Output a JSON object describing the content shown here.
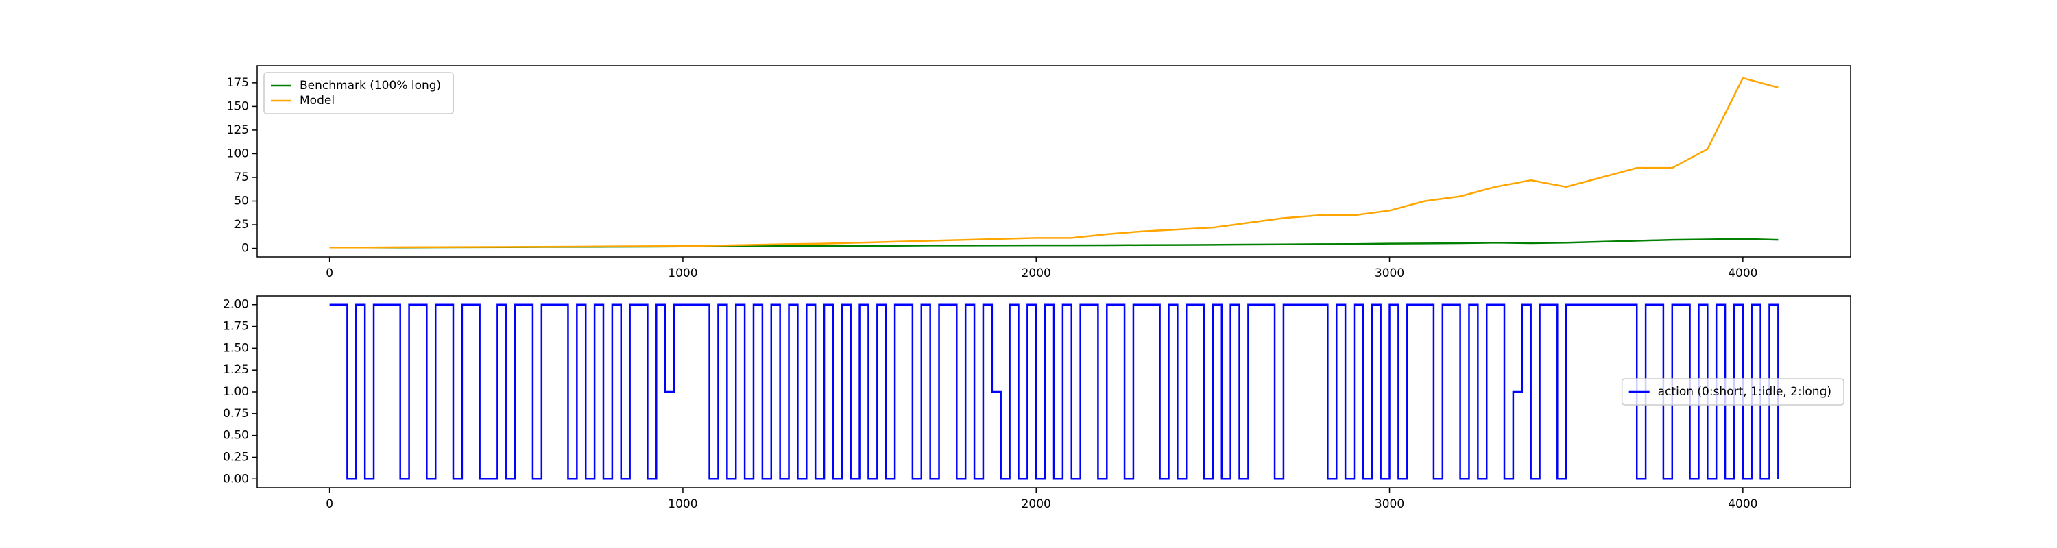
{
  "chart_data": [
    {
      "type": "line",
      "x": [
        0,
        100,
        200,
        300,
        400,
        500,
        600,
        700,
        800,
        900,
        1000,
        1100,
        1200,
        1300,
        1400,
        1500,
        1600,
        1700,
        1800,
        1900,
        2000,
        2100,
        2200,
        2300,
        2400,
        2500,
        2600,
        2700,
        2800,
        2900,
        3000,
        3100,
        3200,
        3300,
        3400,
        3500,
        3600,
        3700,
        3800,
        3900,
        4000,
        4100
      ],
      "series": [
        {
          "name": "Benchmark (100% long)",
          "color": "#008000",
          "values": [
            1,
            1,
            1,
            1.1,
            1.2,
            1.3,
            1.5,
            1.6,
            1.8,
            1.9,
            2,
            2.2,
            2.4,
            2.5,
            2.5,
            2.7,
            2.8,
            3,
            3,
            3.1,
            3.2,
            3.2,
            3.3,
            3.5,
            3.6,
            3.8,
            4,
            4.2,
            4.5,
            4.6,
            5,
            5.2,
            5.5,
            6,
            5.5,
            6,
            7,
            8,
            9,
            9.5,
            10,
            9
          ]
        },
        {
          "name": "Model",
          "color": "#ffa500",
          "values": [
            1,
            1,
            1.2,
            1.3,
            1.4,
            1.5,
            1.7,
            1.9,
            2.1,
            2.3,
            2.5,
            3,
            3.8,
            4.5,
            5,
            6,
            7,
            8,
            9,
            10,
            11,
            11,
            15,
            18,
            20,
            22,
            27,
            32,
            35,
            35,
            40,
            50,
            55,
            65,
            72,
            65,
            75,
            85,
            85,
            105,
            180,
            170
          ]
        }
      ],
      "xlim": [
        -205,
        4305
      ],
      "xticks": [
        0,
        1000,
        2000,
        3000,
        4000
      ],
      "ylim": [
        -9,
        193
      ],
      "yticks": [
        0,
        25,
        50,
        75,
        100,
        125,
        150,
        175
      ],
      "legend": "upper left"
    },
    {
      "type": "line",
      "step": "post",
      "x": [
        0,
        25,
        50,
        75,
        100,
        125,
        150,
        175,
        200,
        225,
        250,
        275,
        300,
        325,
        350,
        375,
        400,
        425,
        450,
        475,
        500,
        525,
        550,
        575,
        600,
        625,
        650,
        675,
        700,
        725,
        750,
        775,
        800,
        825,
        850,
        875,
        900,
        925,
        950,
        975,
        1000,
        1025,
        1050,
        1075,
        1100,
        1125,
        1150,
        1175,
        1200,
        1225,
        1250,
        1275,
        1300,
        1325,
        1350,
        1375,
        1400,
        1425,
        1450,
        1475,
        1500,
        1525,
        1550,
        1575,
        1600,
        1625,
        1650,
        1675,
        1700,
        1725,
        1750,
        1775,
        1800,
        1825,
        1850,
        1875,
        1900,
        1925,
        1950,
        1975,
        2000,
        2025,
        2050,
        2075,
        2100,
        2125,
        2150,
        2175,
        2200,
        2225,
        2250,
        2275,
        2300,
        2325,
        2350,
        2375,
        2400,
        2425,
        2450,
        2475,
        2500,
        2525,
        2550,
        2575,
        2600,
        2625,
        2650,
        2675,
        2700,
        2725,
        2750,
        2775,
        2800,
        2825,
        2850,
        2875,
        2900,
        2925,
        2950,
        2975,
        3000,
        3025,
        3050,
        3075,
        3100,
        3125,
        3150,
        3175,
        3200,
        3225,
        3250,
        3275,
        3300,
        3325,
        3350,
        3375,
        3400,
        3425,
        3450,
        3475,
        3500,
        3525,
        3550,
        3575,
        3600,
        3625,
        3650,
        3675,
        3700,
        3725,
        3750,
        3775,
        3800,
        3825,
        3850,
        3875,
        3900,
        3925,
        3950,
        3975,
        4000,
        4025,
        4050,
        4075,
        4100
      ],
      "series": [
        {
          "name": "action (0:short, 1:idle, 2:long)",
          "color": "#0000ff",
          "values": [
            2,
            2,
            0,
            2,
            0,
            2,
            2,
            2,
            0,
            2,
            2,
            0,
            2,
            2,
            0,
            2,
            2,
            0,
            0,
            2,
            0,
            2,
            2,
            0,
            2,
            2,
            2,
            0,
            2,
            0,
            2,
            0,
            2,
            0,
            2,
            2,
            0,
            2,
            1,
            2,
            2,
            2,
            2,
            0,
            2,
            0,
            2,
            0,
            2,
            0,
            2,
            0,
            2,
            0,
            2,
            0,
            2,
            0,
            2,
            0,
            2,
            0,
            2,
            0,
            2,
            2,
            0,
            2,
            0,
            2,
            2,
            0,
            2,
            0,
            2,
            1,
            0,
            2,
            0,
            2,
            0,
            2,
            0,
            2,
            0,
            2,
            2,
            0,
            2,
            2,
            0,
            2,
            2,
            2,
            0,
            2,
            0,
            2,
            2,
            0,
            2,
            0,
            2,
            0,
            2,
            2,
            2,
            0,
            2,
            2,
            2,
            2,
            2,
            0,
            2,
            0,
            2,
            0,
            2,
            0,
            2,
            0,
            2,
            2,
            2,
            0,
            2,
            2,
            0,
            2,
            0,
            2,
            2,
            0,
            1,
            2,
            0,
            2,
            2,
            0,
            2,
            2,
            2,
            2,
            2,
            2,
            2,
            2,
            0,
            2,
            2,
            0,
            2,
            2,
            0,
            2,
            0,
            2,
            0,
            2,
            0,
            2,
            0,
            2,
            0
          ]
        }
      ],
      "xlim": [
        -205,
        4305
      ],
      "xticks": [
        0,
        1000,
        2000,
        3000,
        4000
      ],
      "ylim": [
        -0.1,
        2.1
      ],
      "yticks": [
        {
          "value": 0,
          "label": "0.00"
        },
        {
          "value": 0.25,
          "label": "0.25"
        },
        {
          "value": 0.5,
          "label": "0.50"
        },
        {
          "value": 0.75,
          "label": "0.75"
        },
        {
          "value": 1,
          "label": "1.00"
        },
        {
          "value": 1.25,
          "label": "1.25"
        },
        {
          "value": 1.5,
          "label": "1.50"
        },
        {
          "value": 1.75,
          "label": "1.75"
        },
        {
          "value": 2,
          "label": "2.00"
        }
      ],
      "legend": "center right"
    }
  ]
}
